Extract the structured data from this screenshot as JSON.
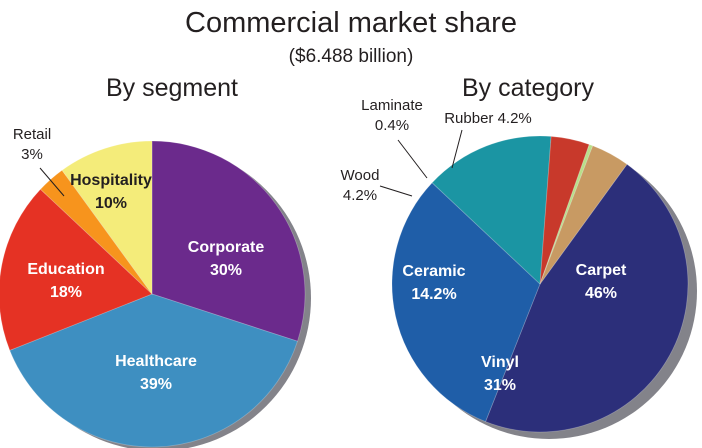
{
  "title": "Commercial market share",
  "subtitle": "($6.488 billion)",
  "chart_data": [
    {
      "type": "pie",
      "title": "By segment",
      "slices": [
        {
          "label": "Corporate",
          "value": 30,
          "value_label": "30%",
          "color": "#6b2a8c"
        },
        {
          "label": "Healthcare",
          "value": 39,
          "value_label": "39%",
          "color": "#3e8fc1"
        },
        {
          "label": "Education",
          "value": 18,
          "value_label": "18%",
          "color": "#e53224"
        },
        {
          "label": "Retail",
          "value": 3,
          "value_label": "3%",
          "color": "#f7941d"
        },
        {
          "label": "Hospitality",
          "value": 10,
          "value_label": "10%",
          "color": "#f4ec7a"
        }
      ]
    },
    {
      "type": "pie",
      "title": "By category",
      "slices": [
        {
          "label": "Carpet",
          "value": 46,
          "value_label": "46%",
          "color": "#2c2f7a"
        },
        {
          "label": "Vinyl",
          "value": 31,
          "value_label": "31%",
          "color": "#1f5ea8"
        },
        {
          "label": "Ceramic",
          "value": 14.2,
          "value_label": "14.2%",
          "color": "#1b95a3"
        },
        {
          "label": "Wood",
          "value": 4.2,
          "value_label": "4.2%",
          "color": "#c8392b"
        },
        {
          "label": "Laminate",
          "value": 0.4,
          "value_label": "0.4%",
          "color": "#b9df8a"
        },
        {
          "label": "Rubber",
          "value": 4.2,
          "value_label": "4.2%",
          "color": "#c89a63"
        }
      ]
    }
  ]
}
